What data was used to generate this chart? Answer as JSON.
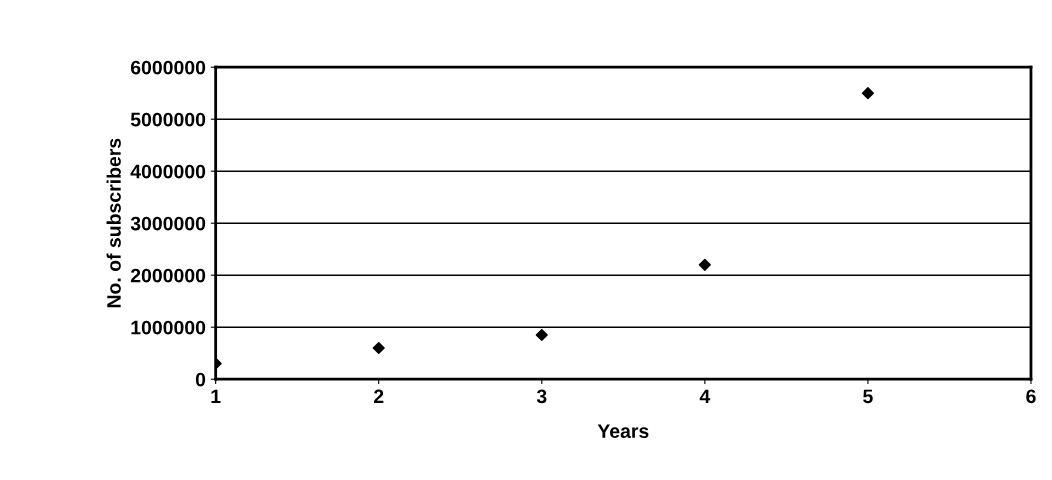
{
  "chart_data": {
    "type": "scatter",
    "xlabel": "Years",
    "ylabel": "No. of subscribers",
    "x": [
      1,
      2,
      3,
      4,
      5
    ],
    "series": [
      {
        "color": "#000000",
        "values": [
          300000,
          600000,
          850000,
          2200000,
          5500000
        ]
      }
    ],
    "xlim": [
      1,
      6
    ],
    "xticks": [
      1,
      2,
      3,
      4,
      5,
      6
    ],
    "ylim": [
      0,
      6000000
    ],
    "yticks": [
      0,
      1000000,
      2000000,
      3000000,
      4000000,
      5000000,
      6000000
    ],
    "grid": "y",
    "marker": "diamond"
  }
}
